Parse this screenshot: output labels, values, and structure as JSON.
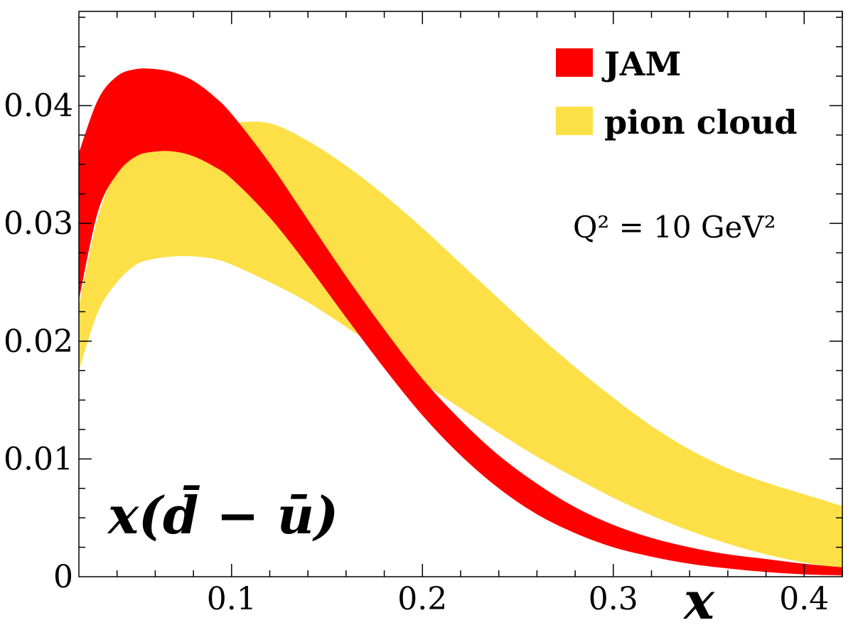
{
  "chart_data": {
    "type": "area",
    "xlabel": "x",
    "ylabel": "",
    "xlim": [
      0.02,
      0.42
    ],
    "ylim": [
      0,
      0.048
    ],
    "xticks": [
      0.1,
      0.2,
      0.3,
      0.4
    ],
    "xtick_labels": [
      "0.1",
      "0.2",
      "0.3",
      "0.4"
    ],
    "yticks": [
      0,
      0.01,
      0.02,
      0.03,
      0.04
    ],
    "ytick_labels": [
      "0",
      "0.01",
      "0.02",
      "0.03",
      "0.04"
    ],
    "legend_position": "top-right",
    "grid": false,
    "annotations": {
      "quantity": "x(d̄ − ū)",
      "scale": "Q² = 10 GeV²"
    },
    "x": [
      0.02,
      0.03,
      0.04,
      0.05,
      0.06,
      0.07,
      0.08,
      0.09,
      0.1,
      0.12,
      0.14,
      0.16,
      0.18,
      0.2,
      0.22,
      0.24,
      0.26,
      0.28,
      0.3,
      0.32,
      0.34,
      0.36,
      0.38,
      0.4,
      0.42
    ],
    "series": [
      {
        "name": "pion cloud",
        "color": "#FDE047",
        "lower": [
          0.0175,
          0.0225,
          0.025,
          0.0265,
          0.027,
          0.0272,
          0.0272,
          0.027,
          0.0265,
          0.025,
          0.0233,
          0.0212,
          0.019,
          0.0165,
          0.0143,
          0.0122,
          0.0102,
          0.0084,
          0.0067,
          0.0052,
          0.0039,
          0.0028,
          0.0019,
          0.0012,
          0.0007
        ],
        "upper": [
          0.023,
          0.0305,
          0.0345,
          0.0358,
          0.0362,
          0.0363,
          0.0368,
          0.0378,
          0.0385,
          0.0385,
          0.037,
          0.0349,
          0.0324,
          0.0296,
          0.0266,
          0.0236,
          0.0206,
          0.0178,
          0.0152,
          0.0128,
          0.0108,
          0.0092,
          0.008,
          0.007,
          0.006
        ]
      },
      {
        "name": "JAM",
        "color": "#FF0000",
        "lower": [
          0.0235,
          0.031,
          0.0342,
          0.0357,
          0.0361,
          0.0361,
          0.0357,
          0.0349,
          0.0338,
          0.0305,
          0.0264,
          0.022,
          0.0177,
          0.0137,
          0.0103,
          0.0075,
          0.0053,
          0.0037,
          0.0025,
          0.0017,
          0.0011,
          0.0007,
          0.0004,
          0.0002,
          0.0001
        ],
        "upper": [
          0.036,
          0.0405,
          0.0425,
          0.0431,
          0.0431,
          0.0428,
          0.0421,
          0.0409,
          0.0393,
          0.0351,
          0.0303,
          0.0255,
          0.021,
          0.0168,
          0.0133,
          0.0103,
          0.0079,
          0.0059,
          0.0044,
          0.0033,
          0.0025,
          0.0019,
          0.0015,
          0.0011,
          0.0008
        ]
      }
    ],
    "legend": [
      {
        "label": "JAM",
        "color": "#FF0000"
      },
      {
        "label": "pion cloud",
        "color": "#FDE047"
      }
    ]
  }
}
